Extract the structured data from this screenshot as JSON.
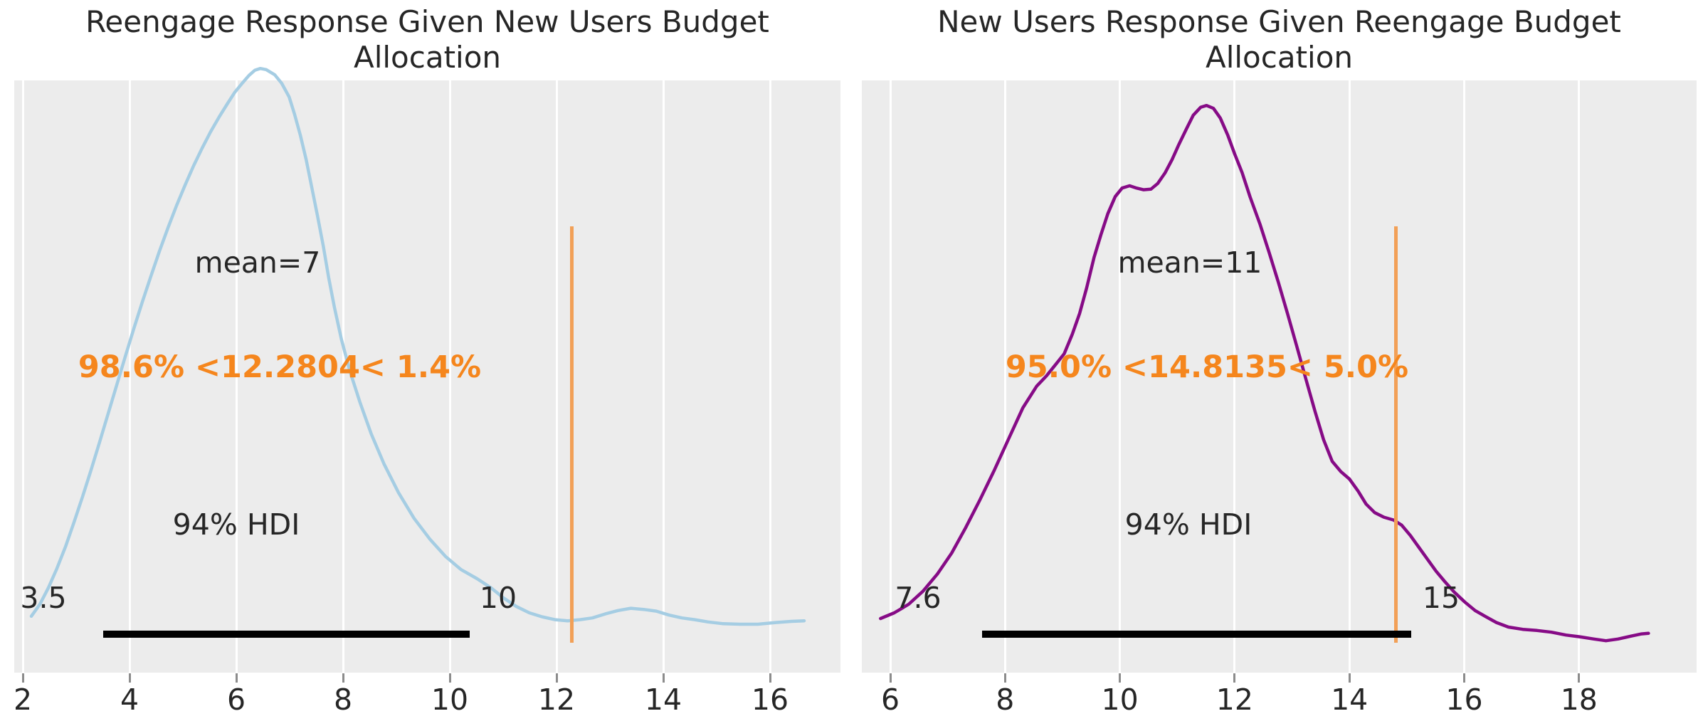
{
  "colors": {
    "plot_bg": "#ececec",
    "grid": "#ffffff",
    "ref_line": "#f2a057",
    "ref_text": "#f5861d",
    "hdi_bar": "#000000",
    "text": "#262626",
    "tick_mark": "#8c8c8c",
    "left_curve": "#a5cde3",
    "right_curve": "#860b86"
  },
  "chart_data": [
    {
      "type": "area",
      "title": "Reengage Response Given New Users Budget Allocation",
      "title_lines": [
        "Reengage Response Given New Users Budget",
        "Allocation"
      ],
      "xlabel": "",
      "ylabel": "",
      "x_ticks": [
        2,
        4,
        6,
        8,
        10,
        12,
        14,
        16
      ],
      "xlim": [
        1.84,
        17.32
      ],
      "grid": "white vertical gridlines on gray background",
      "legend": "none",
      "mean_label": "mean=7",
      "mean_value": 7,
      "hdi_label": "94% HDI",
      "hdi": {
        "lower": 3.5,
        "upper": 10.37,
        "lower_label": "3.5",
        "upper_label": "10"
      },
      "ref_val": {
        "value": 12.2804,
        "label": "98.6% <12.2804< 1.4%",
        "below_pct": "98.6%",
        "above_pct": "1.4%"
      },
      "curve_color": "#a5cde3",
      "series": [
        {
          "name": "posterior density (KDE)",
          "points": [
            [
              2.16,
              0.099
            ],
            [
              2.32,
              0.12
            ],
            [
              2.48,
              0.149
            ],
            [
              2.64,
              0.183
            ],
            [
              2.8,
              0.221
            ],
            [
              2.96,
              0.264
            ],
            [
              3.12,
              0.309
            ],
            [
              3.28,
              0.356
            ],
            [
              3.44,
              0.405
            ],
            [
              3.6,
              0.455
            ],
            [
              3.76,
              0.505
            ],
            [
              3.92,
              0.555
            ],
            [
              4.08,
              0.604
            ],
            [
              4.24,
              0.651
            ],
            [
              4.4,
              0.696
            ],
            [
              4.56,
              0.74
            ],
            [
              4.72,
              0.781
            ],
            [
              4.88,
              0.82
            ],
            [
              5.04,
              0.856
            ],
            [
              5.2,
              0.89
            ],
            [
              5.36,
              0.921
            ],
            [
              5.52,
              0.95
            ],
            [
              5.68,
              0.976
            ],
            [
              5.84,
              1.0
            ],
            [
              5.97,
              1.019
            ],
            [
              6.11,
              1.035
            ],
            [
              6.24,
              1.049
            ],
            [
              6.35,
              1.058
            ],
            [
              6.45,
              1.061
            ],
            [
              6.56,
              1.059
            ],
            [
              6.72,
              1.05
            ],
            [
              6.85,
              1.035
            ],
            [
              6.99,
              1.011
            ],
            [
              7.09,
              0.981
            ],
            [
              7.2,
              0.944
            ],
            [
              7.31,
              0.901
            ],
            [
              7.41,
              0.854
            ],
            [
              7.52,
              0.803
            ],
            [
              7.63,
              0.749
            ],
            [
              7.73,
              0.694
            ],
            [
              7.84,
              0.641
            ],
            [
              7.97,
              0.585
            ],
            [
              8.13,
              0.529
            ],
            [
              8.32,
              0.474
            ],
            [
              8.53,
              0.419
            ],
            [
              8.77,
              0.366
            ],
            [
              9.04,
              0.316
            ],
            [
              9.33,
              0.271
            ],
            [
              9.63,
              0.234
            ],
            [
              9.92,
              0.204
            ],
            [
              10.21,
              0.181
            ],
            [
              10.51,
              0.165
            ],
            [
              10.77,
              0.149
            ],
            [
              11.01,
              0.131
            ],
            [
              11.25,
              0.116
            ],
            [
              11.49,
              0.105
            ],
            [
              11.73,
              0.098
            ],
            [
              11.97,
              0.093
            ],
            [
              12.21,
              0.091
            ],
            [
              12.44,
              0.093
            ],
            [
              12.67,
              0.096
            ],
            [
              12.91,
              0.103
            ],
            [
              13.15,
              0.109
            ],
            [
              13.39,
              0.113
            ],
            [
              13.63,
              0.111
            ],
            [
              13.87,
              0.108
            ],
            [
              14.11,
              0.101
            ],
            [
              14.35,
              0.096
            ],
            [
              14.59,
              0.093
            ],
            [
              14.84,
              0.089
            ],
            [
              15.11,
              0.086
            ],
            [
              15.44,
              0.085
            ],
            [
              15.77,
              0.085
            ],
            [
              16.11,
              0.088
            ],
            [
              16.4,
              0.09
            ],
            [
              16.64,
              0.091
            ]
          ]
        }
      ]
    },
    {
      "type": "area",
      "title": "New Users Response Given Reengage Budget Allocation",
      "title_lines": [
        "New Users Response Given Reengage Budget",
        "Allocation"
      ],
      "xlabel": "",
      "ylabel": "",
      "x_ticks": [
        6,
        8,
        10,
        12,
        14,
        16,
        18
      ],
      "xlim": [
        5.5,
        20.05
      ],
      "grid": "white vertical gridlines on gray background",
      "legend": "none",
      "mean_label": "mean=11",
      "mean_value": 11,
      "hdi_label": "94% HDI",
      "hdi": {
        "lower": 7.6,
        "upper": 15.08,
        "lower_label": "7.6",
        "upper_label": "15"
      },
      "ref_val": {
        "value": 14.8135,
        "label": "95.0% <14.8135< 5.0%",
        "below_pct": "95.0%",
        "above_pct": "5.0%"
      },
      "curve_color": "#860b86",
      "series": [
        {
          "name": "posterior density (KDE)",
          "points": [
            [
              5.83,
              0.095
            ],
            [
              6.07,
              0.105
            ],
            [
              6.32,
              0.12
            ],
            [
              6.57,
              0.143
            ],
            [
              6.82,
              0.173
            ],
            [
              7.07,
              0.21
            ],
            [
              7.31,
              0.254
            ],
            [
              7.56,
              0.303
            ],
            [
              7.81,
              0.355
            ],
            [
              8.06,
              0.41
            ],
            [
              8.31,
              0.465
            ],
            [
              8.55,
              0.503
            ],
            [
              8.72,
              0.521
            ],
            [
              8.88,
              0.541
            ],
            [
              9.03,
              0.56
            ],
            [
              9.17,
              0.594
            ],
            [
              9.3,
              0.631
            ],
            [
              9.42,
              0.675
            ],
            [
              9.55,
              0.729
            ],
            [
              9.67,
              0.769
            ],
            [
              9.79,
              0.806
            ],
            [
              9.92,
              0.836
            ],
            [
              10.04,
              0.851
            ],
            [
              10.17,
              0.855
            ],
            [
              10.29,
              0.851
            ],
            [
              10.41,
              0.848
            ],
            [
              10.54,
              0.849
            ],
            [
              10.66,
              0.859
            ],
            [
              10.79,
              0.878
            ],
            [
              10.91,
              0.901
            ],
            [
              11.03,
              0.928
            ],
            [
              11.16,
              0.955
            ],
            [
              11.28,
              0.979
            ],
            [
              11.41,
              0.993
            ],
            [
              11.51,
              0.996
            ],
            [
              11.63,
              0.991
            ],
            [
              11.75,
              0.974
            ],
            [
              11.88,
              0.944
            ],
            [
              12.0,
              0.911
            ],
            [
              12.13,
              0.878
            ],
            [
              12.27,
              0.835
            ],
            [
              12.44,
              0.788
            ],
            [
              12.6,
              0.738
            ],
            [
              12.76,
              0.686
            ],
            [
              12.92,
              0.631
            ],
            [
              13.08,
              0.574
            ],
            [
              13.24,
              0.516
            ],
            [
              13.4,
              0.459
            ],
            [
              13.55,
              0.409
            ],
            [
              13.7,
              0.371
            ],
            [
              13.85,
              0.353
            ],
            [
              14.0,
              0.34
            ],
            [
              14.15,
              0.319
            ],
            [
              14.29,
              0.296
            ],
            [
              14.44,
              0.281
            ],
            [
              14.6,
              0.273
            ],
            [
              14.77,
              0.268
            ],
            [
              14.91,
              0.259
            ],
            [
              15.06,
              0.241
            ],
            [
              15.21,
              0.22
            ],
            [
              15.36,
              0.199
            ],
            [
              15.51,
              0.178
            ],
            [
              15.66,
              0.16
            ],
            [
              15.83,
              0.141
            ],
            [
              16.01,
              0.124
            ],
            [
              16.19,
              0.109
            ],
            [
              16.38,
              0.098
            ],
            [
              16.56,
              0.088
            ],
            [
              16.77,
              0.08
            ],
            [
              17.02,
              0.076
            ],
            [
              17.27,
              0.074
            ],
            [
              17.52,
              0.071
            ],
            [
              17.77,
              0.066
            ],
            [
              18.01,
              0.063
            ],
            [
              18.26,
              0.059
            ],
            [
              18.47,
              0.056
            ],
            [
              18.68,
              0.059
            ],
            [
              18.9,
              0.064
            ],
            [
              19.09,
              0.068
            ],
            [
              19.21,
              0.069
            ]
          ]
        }
      ]
    }
  ]
}
